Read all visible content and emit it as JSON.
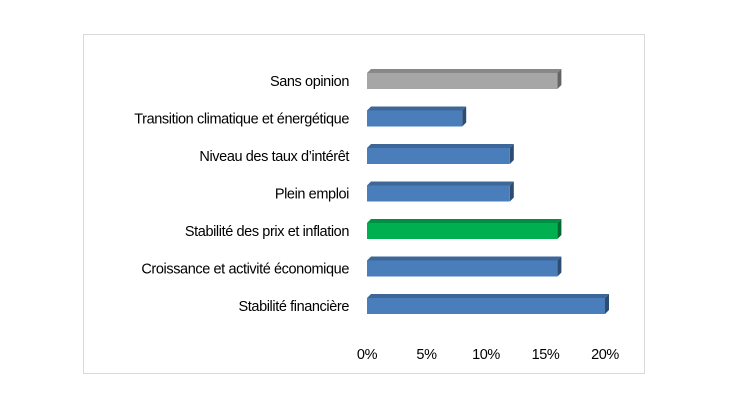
{
  "chart_data": {
    "type": "bar",
    "orientation": "horizontal",
    "categories": [
      "Sans opinion",
      "Transition climatique et énergétique",
      "Niveau des taux d’intérêt",
      "Plein emploi",
      "Stabilité des prix et inflation",
      "Croissance et activité économique",
      "Stabilité financière"
    ],
    "values": [
      16,
      8,
      12,
      12,
      16,
      16,
      20
    ],
    "bar_colors": [
      "#a6a6a6",
      "#4a7ebb",
      "#4a7ebb",
      "#4a7ebb",
      "#00b050",
      "#4a7ebb",
      "#4a7ebb"
    ],
    "xlim": [
      0,
      20
    ],
    "x_ticks": [
      0,
      5,
      10,
      15,
      20
    ],
    "x_tick_labels": [
      "0%",
      "5%",
      "10%",
      "15%",
      "20%"
    ],
    "grid": false,
    "legend": "none"
  }
}
